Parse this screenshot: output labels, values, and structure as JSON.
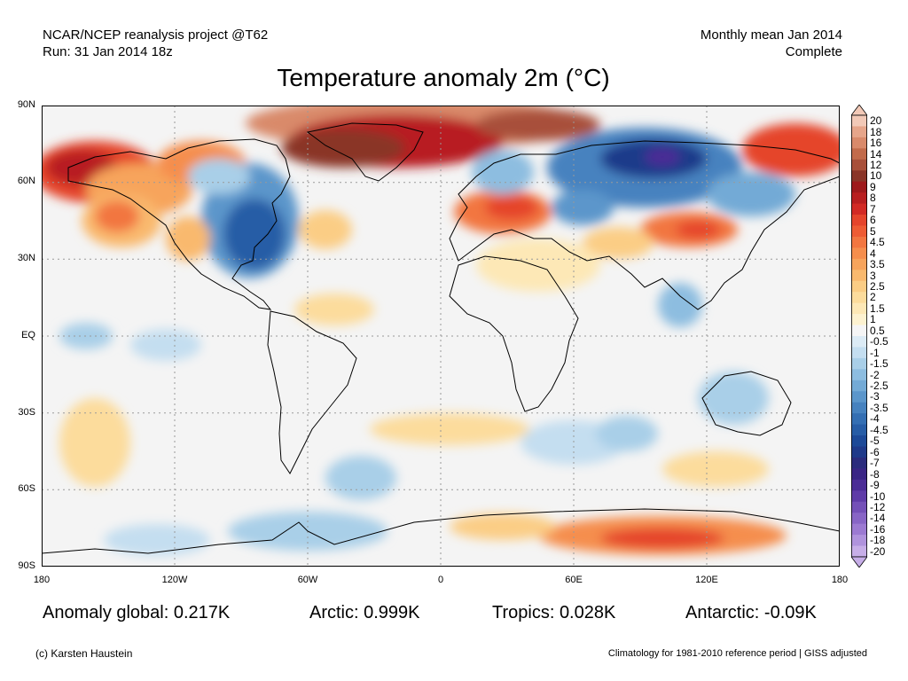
{
  "header": {
    "source": "NCAR/NCEP reanalysis project @T62",
    "run": "Run: 31 Jan 2014 18z",
    "period": "Monthly mean Jan 2014",
    "status": "Complete"
  },
  "title": "Temperature anomaly 2m (°C)",
  "map": {
    "lat_ticks": [
      "90N",
      "60N",
      "30N",
      "EQ",
      "30S",
      "60S",
      "90S"
    ],
    "lon_ticks": [
      "180",
      "120W",
      "60W",
      "0",
      "60E",
      "120E",
      "180"
    ],
    "colors": {
      "background": "#f4f4f4",
      "land_outline": "#000000",
      "grid": "#999999"
    },
    "anomaly_regions": [
      {
        "region": "Greenland / Arctic Atlantic",
        "anomaly": 9
      },
      {
        "region": "Alaska",
        "anomaly": 7
      },
      {
        "region": "Eastern North America",
        "anomaly": -5
      },
      {
        "region": "Central Siberia",
        "anomaly": -8
      },
      {
        "region": "Europe",
        "anomaly": 4
      },
      {
        "region": "East Antarctica",
        "anomaly": 4
      },
      {
        "region": "Southern Ocean / Weddell Sea",
        "anomaly": -1.5
      }
    ]
  },
  "colorbar": {
    "labels": [
      "20",
      "18",
      "16",
      "14",
      "12",
      "10",
      "9",
      "8",
      "7",
      "6",
      "5",
      "4.5",
      "4",
      "3.5",
      "3",
      "2.5",
      "2",
      "1.5",
      "1",
      "0.5",
      "-0.5",
      "-1",
      "-1.5",
      "-2",
      "-2.5",
      "-3",
      "-3.5",
      "-4",
      "-4.5",
      "-5",
      "-6",
      "-7",
      "-8",
      "-9",
      "-10",
      "-12",
      "-14",
      "-16",
      "-18",
      "-20"
    ],
    "colors": [
      "#f2c9b7",
      "#e6a58a",
      "#d98a6b",
      "#c26b4b",
      "#a8503a",
      "#8a3528",
      "#9e1a1c",
      "#b81f20",
      "#d22a25",
      "#e5452c",
      "#ee5c34",
      "#f27640",
      "#f58e4d",
      "#f7a45c",
      "#f9b96e",
      "#fbcd85",
      "#fcdc9c",
      "#fde8b6",
      "#fdf2d0",
      "#f5f5f5",
      "#dcebf5",
      "#c4def0",
      "#a9cfe8",
      "#8dbde0",
      "#73aad6",
      "#5b96cb",
      "#4682bf",
      "#346fb3",
      "#275da6",
      "#1d4a98",
      "#1f3a8a",
      "#2b2c7d",
      "#3a2585",
      "#4b2c96",
      "#5f3ba8",
      "#7450b8",
      "#8865c6",
      "#9c7ad2",
      "#b093dd",
      "#c7aee8"
    ]
  },
  "stats": {
    "global": "Anomaly global: 0.217K",
    "arctic": "Arctic: 0.999K",
    "tropics": "Tropics: 0.028K",
    "antarctic": "Antarctic: -0.09K"
  },
  "footer": {
    "credit": "(c) Karsten Haustein",
    "note": "Climatology for 1981-2010 reference period | GISS adjusted"
  }
}
